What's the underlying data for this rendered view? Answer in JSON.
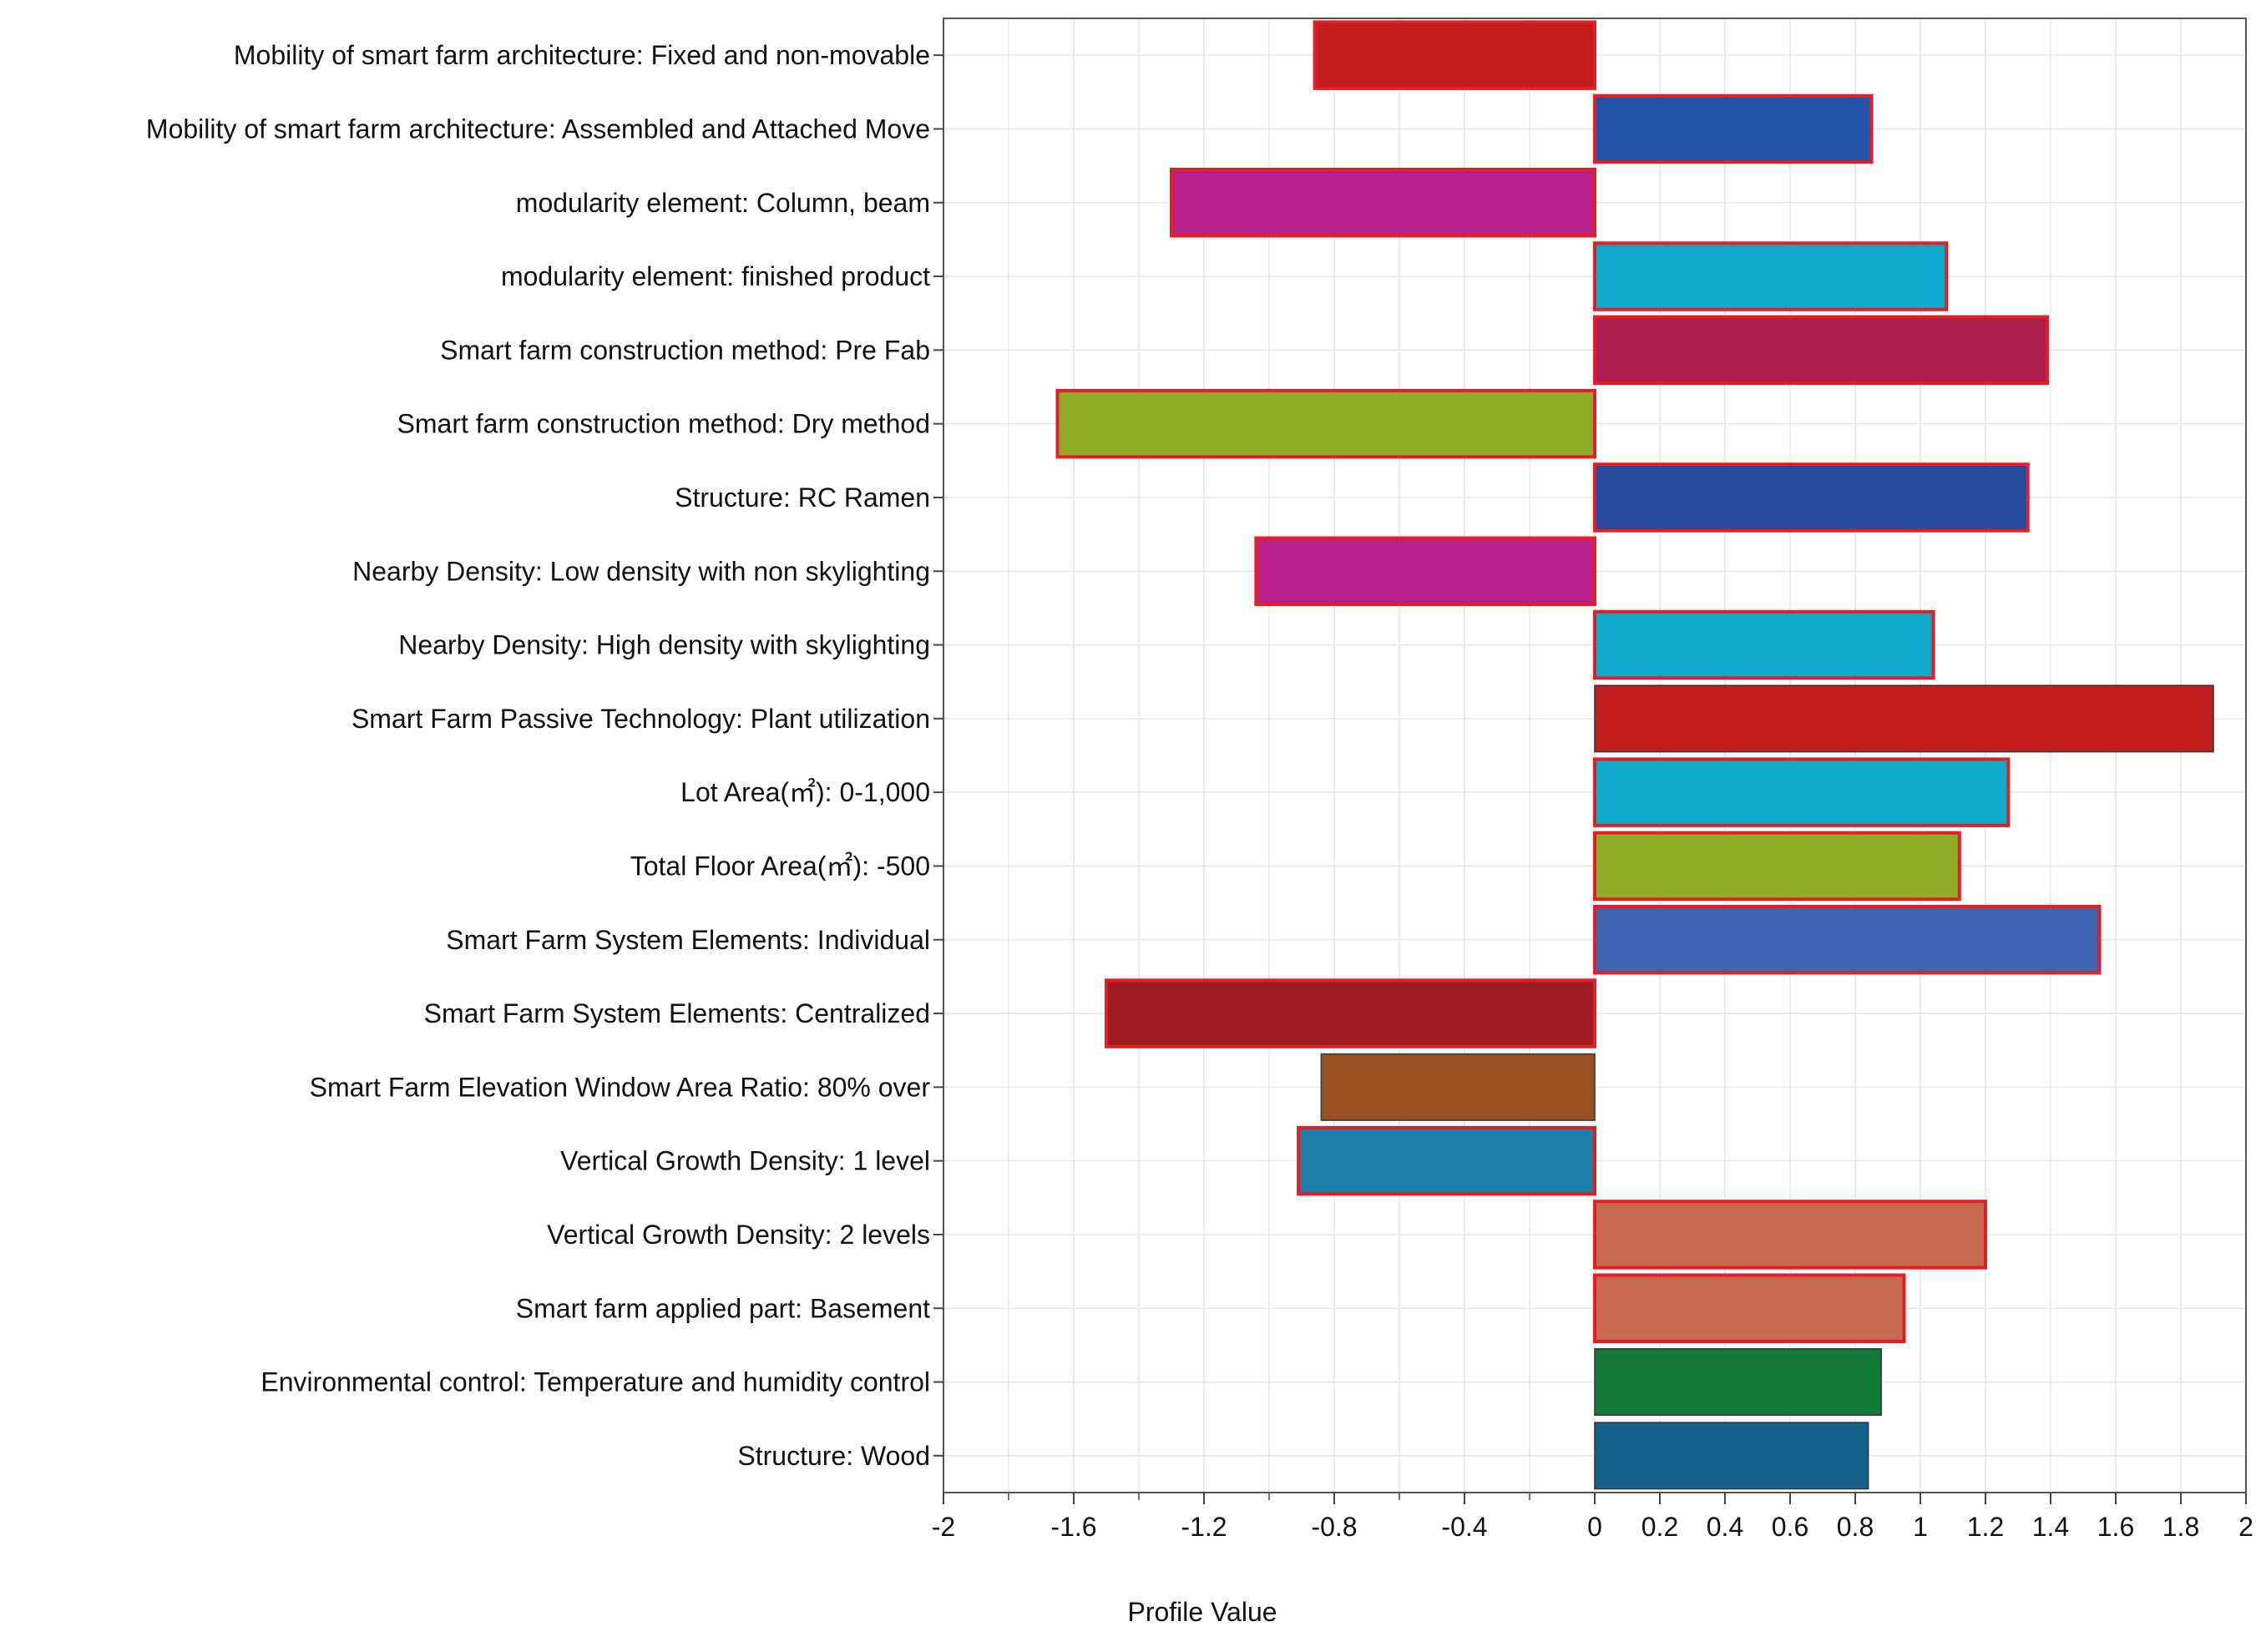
{
  "chart_data": {
    "type": "bar",
    "orientation": "horizontal",
    "title": "",
    "xlabel": "Profile Value",
    "ylabel": "",
    "xlim": [
      -2,
      2
    ],
    "x_ticks": [
      "-2",
      "-1.6",
      "-1.2",
      "-0.8",
      "-0.4",
      "0",
      "0.2",
      "0.4",
      "0.6",
      "0.8",
      "1",
      "1.2",
      "1.4",
      "1.6",
      "1.8",
      "2"
    ],
    "grid": true,
    "legend": "none",
    "bars": [
      {
        "category": "Mobility of smart farm architecture: Fixed and non-movable",
        "value": -0.86,
        "color": "#c11d21",
        "highlighted": true
      },
      {
        "category": "Mobility of smart farm architecture: Assembled and Attached Move",
        "value": 0.85,
        "color": "#2254a5",
        "highlighted": true
      },
      {
        "category": "modularity element: Column, beam",
        "value": -1.3,
        "color": "#b81f88",
        "highlighted": true
      },
      {
        "category": "modularity element: finished product",
        "value": 1.08,
        "color": "#10a8c8",
        "highlighted": true
      },
      {
        "category": "Smart farm construction method: Pre Fab",
        "value": 1.39,
        "color": "#ac1b4e",
        "highlighted": true
      },
      {
        "category": "Smart farm construction method: Dry method",
        "value": -1.65,
        "color": "#8eac27",
        "highlighted": true
      },
      {
        "category": "Structure: RC Ramen",
        "value": 1.33,
        "color": "#254a9c",
        "highlighted": true
      },
      {
        "category": "Nearby Density: Low density with non skylighting",
        "value": -1.04,
        "color": "#b81f88",
        "highlighted": true
      },
      {
        "category": "Nearby Density: High density with skylighting",
        "value": 1.04,
        "color": "#10a8c8",
        "highlighted": true
      },
      {
        "category": "Smart Farm Passive Technology: Plant utilization",
        "value": 1.9,
        "color": "#c11d21",
        "highlighted": false
      },
      {
        "category": "Lot Area(㎡): 0-1,000",
        "value": 1.27,
        "color": "#10a8c8",
        "highlighted": true
      },
      {
        "category": "Total Floor Area(㎡): -500",
        "value": 1.12,
        "color": "#8eac27",
        "highlighted": true
      },
      {
        "category": "Smart Farm System Elements: Individual",
        "value": 1.55,
        "color": "#3f63ae",
        "highlighted": true
      },
      {
        "category": "Smart Farm System Elements: Centralized",
        "value": -1.5,
        "color": "#9c1c22",
        "highlighted": true
      },
      {
        "category": "Smart Farm Elevation Window Area Ratio: 80% over",
        "value": -0.84,
        "color": "#9a4f22",
        "highlighted": false
      },
      {
        "category": "Vertical Growth Density: 1 level",
        "value": -0.91,
        "color": "#1e7fa9",
        "highlighted": true
      },
      {
        "category": "Vertical Growth Density: 2 levels",
        "value": 1.2,
        "color": "#c76a51",
        "highlighted": true
      },
      {
        "category": "Smart farm applied part: Basement",
        "value": 0.95,
        "color": "#c76a51",
        "highlighted": true
      },
      {
        "category": "Environmental control: Temperature and humidity control",
        "value": 0.88,
        "color": "#137a3a",
        "highlighted": false
      },
      {
        "category": "Structure: Wood",
        "value": 0.84,
        "color": "#155f8b",
        "highlighted": false
      }
    ],
    "highlight_color": "#e31e24"
  }
}
